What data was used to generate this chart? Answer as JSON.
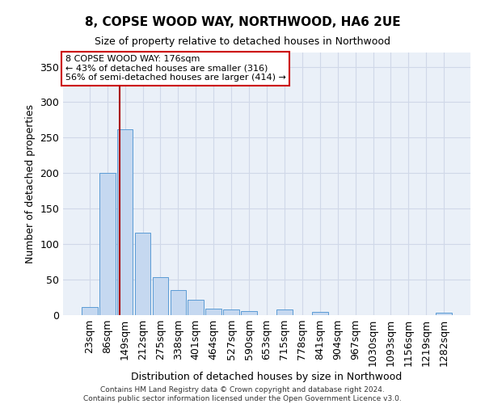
{
  "title": "8, COPSE WOOD WAY, NORTHWOOD, HA6 2UE",
  "subtitle": "Size of property relative to detached houses in Northwood",
  "xlabel": "Distribution of detached houses by size in Northwood",
  "ylabel": "Number of detached properties",
  "categories": [
    "23sqm",
    "86sqm",
    "149sqm",
    "212sqm",
    "275sqm",
    "338sqm",
    "401sqm",
    "464sqm",
    "527sqm",
    "590sqm",
    "653sqm",
    "715sqm",
    "778sqm",
    "841sqm",
    "904sqm",
    "967sqm",
    "1030sqm",
    "1093sqm",
    "1156sqm",
    "1219sqm",
    "1282sqm"
  ],
  "values": [
    11,
    200,
    262,
    116,
    53,
    35,
    22,
    9,
    8,
    6,
    0,
    8,
    0,
    4,
    0,
    0,
    0,
    0,
    0,
    0,
    3
  ],
  "bar_color": "#c5d8f0",
  "bar_edge_color": "#5b9bd5",
  "grid_color": "#d0d8e8",
  "background_color": "#eaf0f8",
  "vline_x": 1.72,
  "vline_color": "#aa0000",
  "annotation_text": "8 COPSE WOOD WAY: 176sqm\n← 43% of detached houses are smaller (316)\n56% of semi-detached houses are larger (414) →",
  "annotation_box_color": "#ffffff",
  "annotation_box_edge": "#cc0000",
  "ylim": [
    0,
    370
  ],
  "yticks": [
    0,
    50,
    100,
    150,
    200,
    250,
    300,
    350
  ],
  "footer1": "Contains HM Land Registry data © Crown copyright and database right 2024.",
  "footer2": "Contains public sector information licensed under the Open Government Licence v3.0."
}
